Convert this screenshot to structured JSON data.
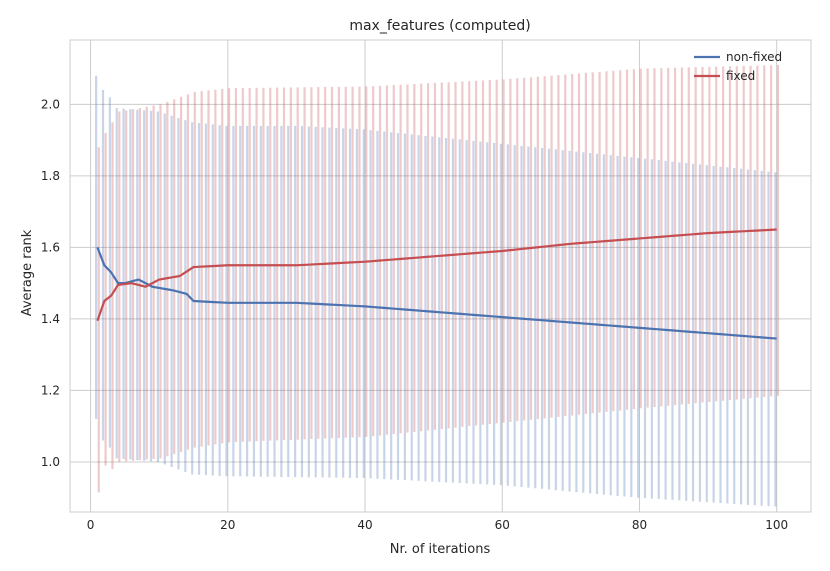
{
  "chart_data": {
    "type": "line",
    "title": "max_features (computed)",
    "xlabel": "Nr. of iterations",
    "ylabel": "Average rank",
    "xlim": [
      -3,
      105
    ],
    "ylim": [
      0.86,
      2.18
    ],
    "xticks": [
      0,
      20,
      40,
      60,
      80,
      100
    ],
    "yticks": [
      1.0,
      1.2,
      1.4,
      1.6,
      1.8,
      2.0
    ],
    "xtick_labels": [
      "0",
      "20",
      "40",
      "60",
      "80",
      "100"
    ],
    "ytick_labels": [
      "1.0",
      "1.2",
      "1.4",
      "1.6",
      "1.8",
      "2.0"
    ],
    "grid": true,
    "legend_position": "top-right",
    "error_bars": true,
    "x_range": [
      1,
      100
    ],
    "series": [
      {
        "name": "non-fixed",
        "color": "#4c72b0",
        "mean_anchors": [
          [
            1,
            1.6
          ],
          [
            2,
            1.55
          ],
          [
            3,
            1.53
          ],
          [
            4,
            1.5
          ],
          [
            5,
            1.5
          ],
          [
            7,
            1.51
          ],
          [
            9,
            1.49
          ],
          [
            12,
            1.48
          ],
          [
            14,
            1.47
          ],
          [
            15,
            1.45
          ],
          [
            20,
            1.445
          ],
          [
            30,
            1.445
          ],
          [
            40,
            1.435
          ],
          [
            50,
            1.42
          ],
          [
            60,
            1.405
          ],
          [
            70,
            1.39
          ],
          [
            80,
            1.375
          ],
          [
            90,
            1.36
          ],
          [
            100,
            1.345
          ]
        ],
        "upper_anchors": [
          [
            1,
            2.08
          ],
          [
            2,
            2.04
          ],
          [
            3,
            2.02
          ],
          [
            4,
            1.99
          ],
          [
            10,
            1.98
          ],
          [
            15,
            1.95
          ],
          [
            20,
            1.94
          ],
          [
            30,
            1.94
          ],
          [
            40,
            1.93
          ],
          [
            50,
            1.91
          ],
          [
            60,
            1.89
          ],
          [
            70,
            1.87
          ],
          [
            80,
            1.85
          ],
          [
            90,
            1.83
          ],
          [
            100,
            1.81
          ]
        ],
        "lower_anchors": [
          [
            1,
            1.12
          ],
          [
            2,
            1.06
          ],
          [
            3,
            1.04
          ],
          [
            4,
            1.01
          ],
          [
            10,
            1.0
          ],
          [
            15,
            0.965
          ],
          [
            20,
            0.96
          ],
          [
            40,
            0.955
          ],
          [
            60,
            0.935
          ],
          [
            80,
            0.9
          ],
          [
            100,
            0.875
          ]
        ]
      },
      {
        "name": "fixed",
        "color": "#c44e52",
        "mean_anchors": [
          [
            1,
            1.395
          ],
          [
            2,
            1.45
          ],
          [
            3,
            1.465
          ],
          [
            4,
            1.495
          ],
          [
            6,
            1.5
          ],
          [
            8,
            1.49
          ],
          [
            10,
            1.51
          ],
          [
            13,
            1.52
          ],
          [
            15,
            1.545
          ],
          [
            20,
            1.55
          ],
          [
            30,
            1.55
          ],
          [
            40,
            1.56
          ],
          [
            50,
            1.575
          ],
          [
            60,
            1.59
          ],
          [
            70,
            1.61
          ],
          [
            80,
            1.625
          ],
          [
            90,
            1.64
          ],
          [
            100,
            1.65
          ]
        ],
        "upper_anchors": [
          [
            1,
            1.88
          ],
          [
            2,
            1.92
          ],
          [
            3,
            1.95
          ],
          [
            4,
            1.98
          ],
          [
            10,
            2.0
          ],
          [
            15,
            2.035
          ],
          [
            20,
            2.045
          ],
          [
            40,
            2.05
          ],
          [
            60,
            2.07
          ],
          [
            80,
            2.1
          ],
          [
            100,
            2.11
          ]
        ],
        "lower_anchors": [
          [
            1,
            0.915
          ],
          [
            2,
            0.99
          ],
          [
            3,
            0.98
          ],
          [
            4,
            1.0
          ],
          [
            10,
            1.01
          ],
          [
            15,
            1.04
          ],
          [
            20,
            1.055
          ],
          [
            40,
            1.07
          ],
          [
            60,
            1.11
          ],
          [
            80,
            1.15
          ],
          [
            100,
            1.185
          ]
        ]
      }
    ]
  }
}
